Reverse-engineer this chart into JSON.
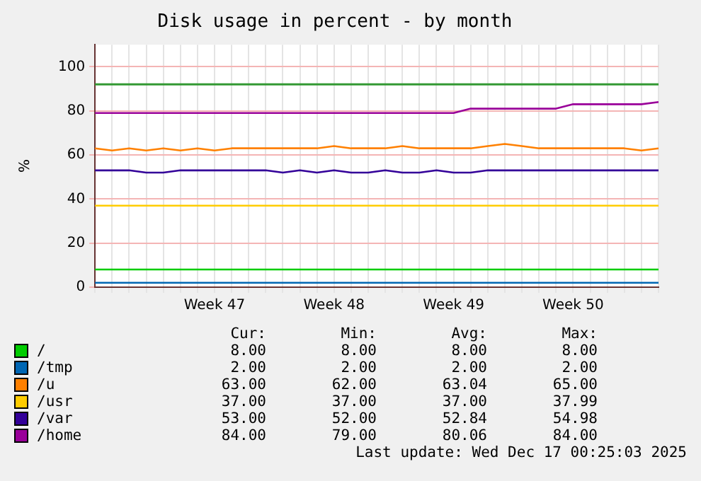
{
  "chart_data": {
    "type": "line",
    "title": "Disk usage in percent - by month",
    "ylabel": "%",
    "categories": [
      null,
      null,
      null,
      null,
      null,
      null,
      null,
      "Week 47",
      null,
      null,
      null,
      null,
      null,
      null,
      "Week 48",
      null,
      null,
      null,
      null,
      null,
      null,
      "Week 49",
      null,
      null,
      null,
      null,
      null,
      null,
      "Week 50",
      null,
      null,
      null,
      null,
      null
    ],
    "ylim": [
      0,
      110
    ],
    "yticks": [
      0,
      20,
      40,
      60,
      80,
      100
    ],
    "grid": true,
    "legend": "bottom",
    "line_style": "solid",
    "ref_lines": [
      {
        "axis": "y",
        "value": 92,
        "color": "#339933"
      }
    ],
    "series": [
      {
        "name": "/",
        "color": "#00cc00",
        "values": [
          8,
          8,
          8,
          8,
          8,
          8,
          8,
          8,
          8,
          8,
          8,
          8,
          8,
          8,
          8,
          8,
          8,
          8,
          8,
          8,
          8,
          8,
          8,
          8,
          8,
          8,
          8,
          8,
          8,
          8,
          8,
          8,
          8,
          8
        ]
      },
      {
        "name": "/tmp",
        "color": "#0066b3",
        "values": [
          2,
          2,
          2,
          2,
          2,
          2,
          2,
          2,
          2,
          2,
          2,
          2,
          2,
          2,
          2,
          2,
          2,
          2,
          2,
          2,
          2,
          2,
          2,
          2,
          2,
          2,
          2,
          2,
          2,
          2,
          2,
          2,
          2,
          2
        ]
      },
      {
        "name": "/u",
        "color": "#ff8000",
        "values": [
          63,
          62,
          63,
          62,
          63,
          62,
          63,
          62,
          63,
          63,
          63,
          63,
          63,
          63,
          64,
          63,
          63,
          63,
          64,
          63,
          63,
          63,
          63,
          64,
          65,
          64,
          63,
          63,
          63,
          63,
          63,
          63,
          62,
          63
        ]
      },
      {
        "name": "/usr",
        "color": "#ffcc00",
        "values": [
          37,
          37,
          37,
          37,
          37,
          37,
          37,
          37,
          37,
          37,
          37,
          37,
          37,
          37,
          37,
          37,
          37,
          37,
          37,
          37,
          37,
          37,
          37,
          37,
          37,
          37,
          37,
          37,
          37,
          37,
          37,
          37,
          37,
          37
        ]
      },
      {
        "name": "/var",
        "color": "#330099",
        "values": [
          53,
          53,
          53,
          52,
          52,
          53,
          53,
          53,
          53,
          53,
          53,
          52,
          53,
          52,
          53,
          52,
          52,
          53,
          52,
          52,
          53,
          52,
          52,
          53,
          53,
          53,
          53,
          53,
          53,
          53,
          53,
          53,
          53,
          53
        ]
      },
      {
        "name": "/home",
        "color": "#990099",
        "values": [
          79,
          79,
          79,
          79,
          79,
          79,
          79,
          79,
          79,
          79,
          79,
          79,
          79,
          79,
          79,
          79,
          79,
          79,
          79,
          79,
          79,
          79,
          81,
          81,
          81,
          81,
          81,
          81,
          83,
          83,
          83,
          83,
          83,
          84
        ]
      }
    ],
    "annotations": [
      "Cur:",
      "Min:",
      "Avg:",
      "Max:",
      "8.00",
      "8.00",
      "8.00",
      "8.00",
      "2.00",
      "2.00",
      "2.00",
      "2.00",
      "63.00",
      "62.00",
      "63.04",
      "65.00",
      "37.00",
      "37.00",
      "37.00",
      "37.99",
      "53.00",
      "52.00",
      "52.84",
      "54.98",
      "84.00",
      "79.00",
      "80.06",
      "84.00",
      "Last update: Wed Dec 17 00:25:03 2025"
    ]
  }
}
